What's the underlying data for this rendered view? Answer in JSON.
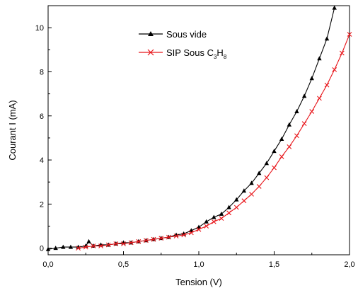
{
  "chart_data": {
    "type": "line",
    "title": "",
    "xlabel": "Tension (V)",
    "ylabel": "Courant I (mA)",
    "xlim": [
      0.0,
      2.0
    ],
    "ylim": [
      -0.3,
      11.0
    ],
    "x_ticks": [
      0.0,
      0.5,
      1.0,
      1.5,
      2.0
    ],
    "x_tick_labels": [
      "0,0",
      "0,5",
      "1,0",
      "1,5",
      "2,0"
    ],
    "y_ticks": [
      0,
      2,
      4,
      6,
      8,
      10
    ],
    "y_tick_labels": [
      "0",
      "2",
      "4",
      "6",
      "8",
      "10"
    ],
    "grid": false,
    "legend_position": "top-center",
    "series": [
      {
        "name": "Sous vide",
        "name_main": "Sous vide",
        "color": "#000000",
        "marker": "triangle",
        "x": [
          0.0,
          0.05,
          0.1,
          0.15,
          0.2,
          0.25,
          0.27,
          0.3,
          0.35,
          0.4,
          0.45,
          0.5,
          0.55,
          0.6,
          0.65,
          0.7,
          0.75,
          0.8,
          0.85,
          0.9,
          0.95,
          1.0,
          1.05,
          1.1,
          1.15,
          1.2,
          1.25,
          1.3,
          1.35,
          1.4,
          1.45,
          1.5,
          1.55,
          1.6,
          1.65,
          1.7,
          1.75,
          1.8,
          1.85,
          1.9
        ],
        "y": [
          -0.05,
          0.0,
          0.05,
          0.05,
          0.05,
          0.1,
          0.3,
          0.1,
          0.15,
          0.15,
          0.2,
          0.25,
          0.25,
          0.3,
          0.35,
          0.4,
          0.45,
          0.5,
          0.6,
          0.65,
          0.8,
          0.95,
          1.2,
          1.4,
          1.55,
          1.85,
          2.2,
          2.6,
          2.95,
          3.4,
          3.85,
          4.4,
          4.95,
          5.6,
          6.2,
          6.9,
          7.7,
          8.6,
          9.5,
          10.9
        ]
      },
      {
        "name": "SIP Sous C3H8",
        "name_main": "SIP Sous C",
        "name_sub1": "3",
        "name_mid": "H",
        "name_sub2": "8",
        "color": "#e8161b",
        "marker": "x",
        "x": [
          0.2,
          0.25,
          0.3,
          0.35,
          0.4,
          0.45,
          0.5,
          0.55,
          0.6,
          0.65,
          0.7,
          0.75,
          0.8,
          0.85,
          0.9,
          0.95,
          1.0,
          1.05,
          1.1,
          1.15,
          1.2,
          1.25,
          1.3,
          1.35,
          1.4,
          1.45,
          1.5,
          1.55,
          1.6,
          1.65,
          1.7,
          1.75,
          1.8,
          1.85,
          1.9,
          1.95,
          2.0
        ],
        "y": [
          0.0,
          0.05,
          0.1,
          0.1,
          0.15,
          0.2,
          0.2,
          0.25,
          0.3,
          0.35,
          0.4,
          0.45,
          0.5,
          0.55,
          0.6,
          0.7,
          0.85,
          1.0,
          1.2,
          1.35,
          1.6,
          1.85,
          2.15,
          2.45,
          2.8,
          3.2,
          3.65,
          4.15,
          4.6,
          5.1,
          5.65,
          6.2,
          6.8,
          7.4,
          8.1,
          8.85,
          9.7
        ]
      }
    ]
  }
}
